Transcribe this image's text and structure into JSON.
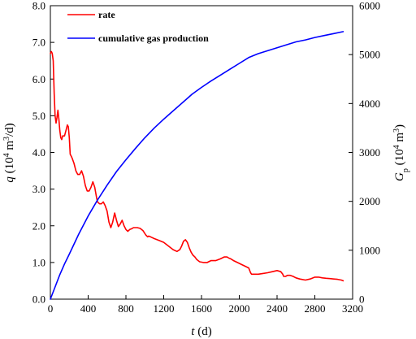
{
  "chart_data": {
    "type": "line",
    "x_axis": {
      "label_var": "t",
      "label_unit": " (d)",
      "range": [
        0,
        3200
      ],
      "ticks": [
        "0",
        "400",
        "800",
        "1200",
        "1600",
        "2000",
        "2400",
        "2800",
        "3200"
      ]
    },
    "y_left": {
      "label_var": "q",
      "label_unit_pre": " (10",
      "label_unit_sup": "4",
      "label_unit_mid": " m",
      "label_unit_sup2": "3",
      "label_unit_post": "/d)",
      "range": [
        0,
        8
      ],
      "ticks": [
        "0.0",
        "1.0",
        "2.0",
        "3.0",
        "4.0",
        "5.0",
        "6.0",
        "7.0",
        "8.0"
      ]
    },
    "y_right": {
      "label_var": "G",
      "label_sub": "p",
      "label_unit_pre": " (10",
      "label_unit_sup": "4",
      "label_unit_mid": " m",
      "label_unit_sup2": "3",
      "label_unit_post": ")",
      "range": [
        0,
        6000
      ],
      "ticks": [
        "0",
        "1000",
        "2000",
        "3000",
        "4000",
        "5000",
        "6000"
      ]
    },
    "legend": {
      "position": "top-left"
    },
    "series": [
      {
        "name": "rate",
        "color": "#ff0000",
        "axis": "left",
        "x": [
          0,
          10,
          20,
          30,
          40,
          50,
          60,
          70,
          80,
          90,
          100,
          110,
          120,
          130,
          150,
          170,
          180,
          190,
          200,
          210,
          220,
          230,
          250,
          270,
          290,
          310,
          330,
          350,
          370,
          390,
          410,
          430,
          450,
          470,
          490,
          500,
          520,
          540,
          560,
          580,
          600,
          620,
          640,
          660,
          680,
          700,
          720,
          740,
          760,
          780,
          800,
          820,
          840,
          860,
          880,
          900,
          920,
          950,
          980,
          1010,
          1030,
          1040,
          1060,
          1100,
          1150,
          1200,
          1250,
          1300,
          1340,
          1370,
          1390,
          1410,
          1430,
          1450,
          1470,
          1490,
          1510,
          1530,
          1550,
          1580,
          1620,
          1660,
          1700,
          1750,
          1800,
          1840,
          1870,
          1890,
          1910,
          1940,
          1980,
          2020,
          2060,
          2100,
          2120,
          2130,
          2150,
          2200,
          2250,
          2300,
          2350,
          2400,
          2440,
          2460,
          2470,
          2490,
          2510,
          2540,
          2570,
          2600,
          2640,
          2700,
          2750,
          2800,
          2840,
          2880,
          2920,
          2960,
          3000,
          3040,
          3080,
          3100
        ],
        "y": [
          6.7,
          6.75,
          6.7,
          6.5,
          5.6,
          5.0,
          4.8,
          4.95,
          5.15,
          4.9,
          4.6,
          4.4,
          4.35,
          4.45,
          4.45,
          4.65,
          4.75,
          4.7,
          4.4,
          3.95,
          3.9,
          3.85,
          3.7,
          3.5,
          3.4,
          3.4,
          3.5,
          3.35,
          3.1,
          2.95,
          2.95,
          3.05,
          3.2,
          3.05,
          2.75,
          2.65,
          2.6,
          2.6,
          2.65,
          2.55,
          2.4,
          2.1,
          1.95,
          2.1,
          2.35,
          2.15,
          1.98,
          2.05,
          2.15,
          2.0,
          1.9,
          1.85,
          1.9,
          1.92,
          1.95,
          1.95,
          1.95,
          1.93,
          1.87,
          1.75,
          1.7,
          1.72,
          1.7,
          1.65,
          1.6,
          1.55,
          1.45,
          1.35,
          1.3,
          1.35,
          1.45,
          1.58,
          1.62,
          1.55,
          1.4,
          1.28,
          1.2,
          1.15,
          1.08,
          1.02,
          1.0,
          1.0,
          1.05,
          1.05,
          1.1,
          1.15,
          1.15,
          1.12,
          1.1,
          1.05,
          1.0,
          0.95,
          0.9,
          0.85,
          0.72,
          0.68,
          0.68,
          0.68,
          0.7,
          0.72,
          0.75,
          0.78,
          0.75,
          0.68,
          0.62,
          0.62,
          0.65,
          0.65,
          0.62,
          0.58,
          0.55,
          0.52,
          0.55,
          0.6,
          0.6,
          0.58,
          0.57,
          0.56,
          0.55,
          0.54,
          0.52,
          0.5
        ]
      },
      {
        "name": "cumulative gas production",
        "color": "#0000ff",
        "axis": "right",
        "x": [
          0,
          50,
          100,
          150,
          200,
          300,
          400,
          500,
          600,
          700,
          800,
          900,
          1000,
          1100,
          1200,
          1300,
          1400,
          1500,
          1600,
          1700,
          1800,
          1900,
          2000,
          2100,
          2200,
          2300,
          2400,
          2500,
          2600,
          2700,
          2800,
          2900,
          3000,
          3100
        ],
        "y": [
          0,
          250,
          500,
          720,
          920,
          1330,
          1700,
          2030,
          2330,
          2610,
          2850,
          3080,
          3300,
          3500,
          3680,
          3850,
          4020,
          4190,
          4330,
          4460,
          4580,
          4700,
          4820,
          4940,
          5020,
          5080,
          5140,
          5200,
          5260,
          5300,
          5350,
          5390,
          5430,
          5470
        ]
      }
    ]
  }
}
